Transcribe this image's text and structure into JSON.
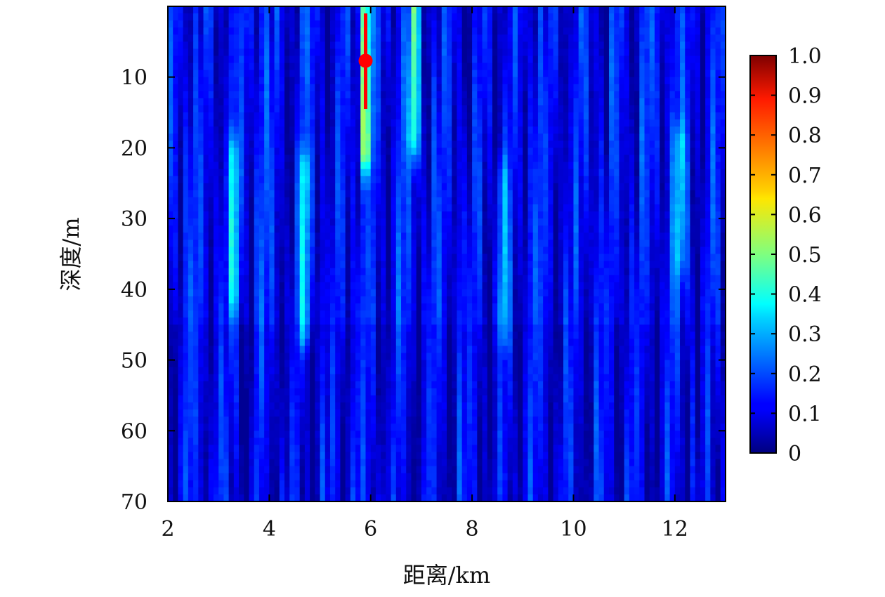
{
  "chart_data": {
    "type": "heatmap",
    "title": "",
    "xlabel": "距离/km",
    "ylabel": "深度/m",
    "xlim": [
      2,
      13
    ],
    "ylim": [
      0,
      70
    ],
    "y_inverted": true,
    "x_ticks": [
      2,
      4,
      6,
      8,
      10,
      12
    ],
    "x_tick_labels": [
      "2",
      "4",
      "6",
      "8",
      "10",
      "12"
    ],
    "y_ticks": [
      10,
      20,
      30,
      40,
      50,
      60,
      70
    ],
    "y_tick_labels": [
      "10",
      "20",
      "30",
      "40",
      "50",
      "60",
      "70"
    ],
    "colorbar": {
      "colormap": "jet",
      "range": [
        0,
        1
      ],
      "ticks": [
        0,
        0.1,
        0.2,
        0.3,
        0.4,
        0.5,
        0.6,
        0.7,
        0.8,
        0.9,
        1.0
      ],
      "tick_labels": [
        "0",
        "0.1",
        "0.2",
        "0.3",
        "0.4",
        "0.5",
        "0.6",
        "0.7",
        "0.8",
        "0.9",
        "1.0"
      ]
    },
    "grid": false,
    "field_summary": "ambiguity surface with mostly low values (0.05-0.3) and vertical streaks; brightest streak near range 5.9 km at shallow depth reaching about 0.6",
    "peak": {
      "range_km": 5.9,
      "depth_m": 8,
      "value": 0.6
    },
    "bright_streaks": [
      {
        "range_km": 3.3,
        "depth_range_m": [
          22,
          40
        ],
        "value": 0.32
      },
      {
        "range_km": 4.7,
        "depth_range_m": [
          24,
          45
        ],
        "value": 0.35
      },
      {
        "range_km": 5.9,
        "depth_range_m": [
          0,
          20
        ],
        "value": 0.55
      },
      {
        "range_km": 6.85,
        "depth_range_m": [
          0,
          18
        ],
        "value": 0.42
      },
      {
        "range_km": 8.6,
        "depth_range_m": [
          25,
          45
        ],
        "value": 0.28
      },
      {
        "range_km": 12.1,
        "depth_range_m": [
          20,
          35
        ],
        "value": 0.28
      }
    ],
    "markers": [
      {
        "type": "point",
        "range_km": 5.9,
        "depth_m": 7.7,
        "color": "#ff0000"
      },
      {
        "type": "vertical-line",
        "range_km": 5.9,
        "depth_range_m": [
          1,
          14.5
        ],
        "color": "#ff0000"
      }
    ]
  }
}
